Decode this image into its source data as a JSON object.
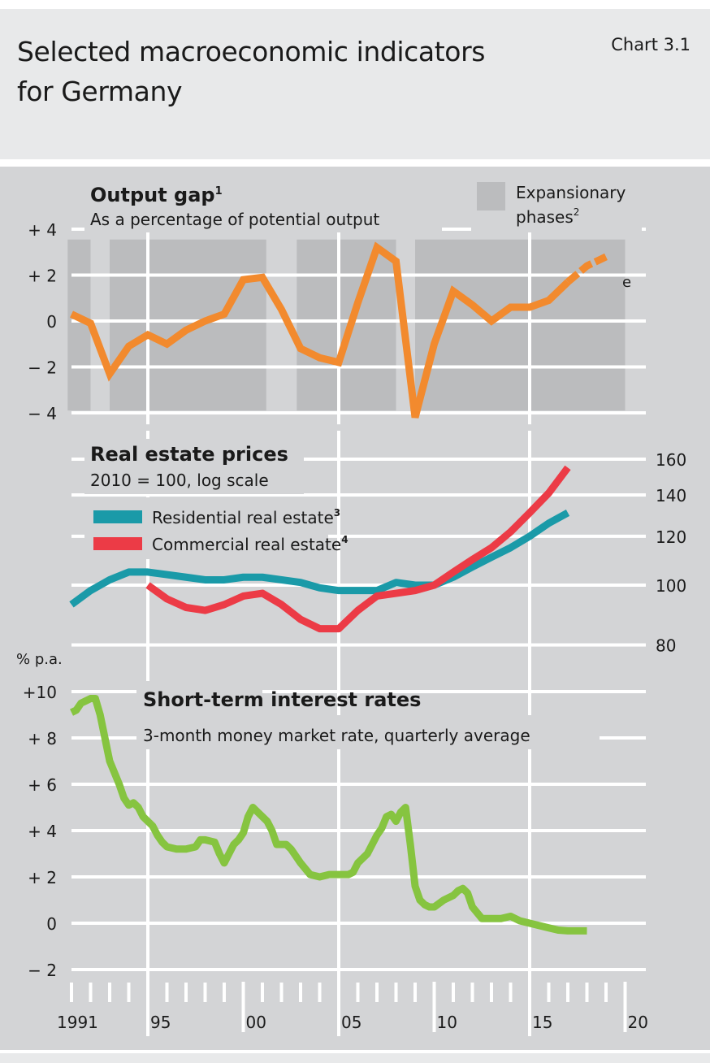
{
  "header": {
    "title_line1": "Selected macroeconomic indicators",
    "title_line2": "for Germany",
    "chart_number": "Chart 3.1"
  },
  "x_axis": {
    "tick_labels": [
      "1991",
      "95",
      "00",
      "05",
      "10",
      "15",
      "20"
    ],
    "tick_years": [
      1991,
      1995,
      2000,
      2005,
      2010,
      2015,
      2020
    ],
    "range": [
      1991,
      2020
    ]
  },
  "colors": {
    "output_gap": "#f28a2e",
    "residential": "#1a9aa8",
    "commercial": "#ec3b46",
    "interest": "#86c440",
    "expansion_band": "#bbbcbe",
    "panel_bg": "#d3d4d6",
    "header_bg": "#e8e9ea"
  },
  "chart_data": [
    {
      "type": "line",
      "title": "Output gap",
      "title_footnote": "1",
      "subtitle": "As a percentage of potential output",
      "ylabel": "",
      "ylim": [
        -4,
        4
      ],
      "y_ticks": [
        4,
        2,
        0,
        -2,
        -4
      ],
      "y_tick_labels": [
        "+ 4",
        "+ 2",
        "0",
        "− 2",
        "− 4"
      ],
      "legend": {
        "label": "Expansionary",
        "label2": "phases",
        "footnote": "2",
        "placement": "top-right"
      },
      "estimate_marker": "e",
      "expansionary_phases": [
        [
          1990.8,
          1992.0
        ],
        [
          1993.0,
          2001.2
        ],
        [
          2002.8,
          2008.0
        ],
        [
          2009.0,
          2020.0
        ]
      ],
      "x": [
        1991,
        1992,
        1993,
        1994,
        1995,
        1996,
        1997,
        1998,
        1999,
        2000,
        2001,
        2002,
        2003,
        2004,
        2005,
        2006,
        2007,
        2008,
        2009,
        2010,
        2011,
        2012,
        2013,
        2014,
        2015,
        2016,
        2017,
        2018,
        2019
      ],
      "series": [
        {
          "name": "Output gap",
          "values": [
            0.3,
            -0.1,
            -2.3,
            -1.1,
            -0.6,
            -1.0,
            -0.4,
            0.0,
            0.3,
            1.8,
            1.9,
            0.5,
            -1.2,
            -1.6,
            -1.8,
            0.8,
            3.2,
            2.6,
            -4.2,
            -1.0,
            1.3,
            0.7,
            0.0,
            0.6,
            0.6,
            0.9,
            1.7,
            2.4,
            2.8
          ],
          "estimated_from": 2017
        }
      ]
    },
    {
      "type": "line",
      "title": "Real estate prices",
      "subtitle": "2010 = 100, log scale",
      "ylim": [
        80,
        160
      ],
      "y_scale": "log",
      "y_ticks": [
        160,
        140,
        120,
        100,
        80
      ],
      "y_tick_labels": [
        "160",
        "140",
        "120",
        "100",
        "80"
      ],
      "y_axis_side": "right",
      "series": [
        {
          "name": "Residential real estate",
          "footnote": "3",
          "x": [
            1991,
            1992,
            1993,
            1994,
            1995,
            1996,
            1997,
            1998,
            1999,
            2000,
            2001,
            2002,
            2003,
            2004,
            2005,
            2006,
            2007,
            2008,
            2009,
            2010,
            2011,
            2012,
            2013,
            2014,
            2015,
            2016,
            2017
          ],
          "values": [
            93,
            98,
            102,
            105,
            105,
            104,
            103,
            102,
            102,
            103,
            103,
            102,
            101,
            99,
            98,
            98,
            98,
            101,
            100,
            100,
            103,
            107,
            111,
            115,
            120,
            126,
            131
          ]
        },
        {
          "name": "Commercial real estate",
          "footnote": "4",
          "x": [
            1995,
            1996,
            1997,
            1998,
            1999,
            2000,
            2001,
            2002,
            2003,
            2004,
            2005,
            2006,
            2007,
            2008,
            2009,
            2010,
            2011,
            2012,
            2013,
            2014,
            2015,
            2016,
            2017
          ],
          "values": [
            100,
            95,
            92,
            91,
            93,
            96,
            97,
            93,
            88,
            85,
            85,
            91,
            96,
            97,
            98,
            100,
            105,
            110,
            115,
            122,
            131,
            141,
            155
          ]
        }
      ]
    },
    {
      "type": "line",
      "title": "Short-term interest rates",
      "subtitle": "3-month money market rate, quarterly average",
      "ylabel": "% p.a.",
      "ylim": [
        -2,
        10
      ],
      "y_ticks": [
        10,
        8,
        6,
        4,
        2,
        0,
        -2
      ],
      "y_tick_labels": [
        "+10",
        "+  8",
        "+  6",
        "+  4",
        "+  2",
        "0",
        "−  2"
      ],
      "series": [
        {
          "name": "3-month money market rate",
          "x": [
            1991.0,
            1991.25,
            1991.5,
            1991.75,
            1992.0,
            1992.25,
            1992.5,
            1992.75,
            1993.0,
            1993.25,
            1993.5,
            1993.75,
            1994.0,
            1994.25,
            1994.5,
            1994.75,
            1995.0,
            1995.25,
            1995.5,
            1995.75,
            1996.0,
            1996.5,
            1997.0,
            1997.5,
            1997.75,
            1998.0,
            1998.5,
            1998.75,
            1999.0,
            1999.25,
            1999.5,
            1999.75,
            2000.0,
            2000.25,
            2000.5,
            2000.75,
            2001.0,
            2001.25,
            2001.5,
            2001.75,
            2002.0,
            2002.25,
            2002.5,
            2002.75,
            2003.0,
            2003.5,
            2004.0,
            2004.5,
            2005.0,
            2005.5,
            2005.75,
            2006.0,
            2006.5,
            2007.0,
            2007.25,
            2007.5,
            2007.75,
            2008.0,
            2008.25,
            2008.5,
            2008.75,
            2009.0,
            2009.25,
            2009.5,
            2009.75,
            2010.0,
            2010.5,
            2011.0,
            2011.25,
            2011.5,
            2011.75,
            2012.0,
            2012.5,
            2013.0,
            2013.5,
            2014.0,
            2014.25,
            2014.5,
            2015.0,
            2015.5,
            2016.0,
            2016.5,
            2017.0,
            2017.5,
            2018.0
          ],
          "values": [
            9.1,
            9.2,
            9.5,
            9.6,
            9.7,
            9.7,
            9.0,
            8.0,
            7.0,
            6.5,
            6.0,
            5.4,
            5.1,
            5.2,
            5.0,
            4.6,
            4.4,
            4.2,
            3.8,
            3.5,
            3.3,
            3.2,
            3.2,
            3.3,
            3.6,
            3.6,
            3.5,
            3.0,
            2.6,
            3.0,
            3.4,
            3.6,
            3.9,
            4.6,
            5.0,
            4.8,
            4.6,
            4.4,
            4.0,
            3.4,
            3.4,
            3.4,
            3.2,
            2.9,
            2.6,
            2.1,
            2.0,
            2.1,
            2.1,
            2.1,
            2.2,
            2.6,
            3.0,
            3.8,
            4.1,
            4.6,
            4.7,
            4.4,
            4.8,
            5.0,
            3.4,
            1.6,
            1.0,
            0.8,
            0.7,
            0.7,
            1.0,
            1.2,
            1.4,
            1.5,
            1.3,
            0.7,
            0.2,
            0.2,
            0.2,
            0.3,
            0.2,
            0.1,
            0.0,
            -0.1,
            -0.2,
            -0.3,
            -0.33,
            -0.33,
            -0.33
          ]
        }
      ]
    }
  ]
}
